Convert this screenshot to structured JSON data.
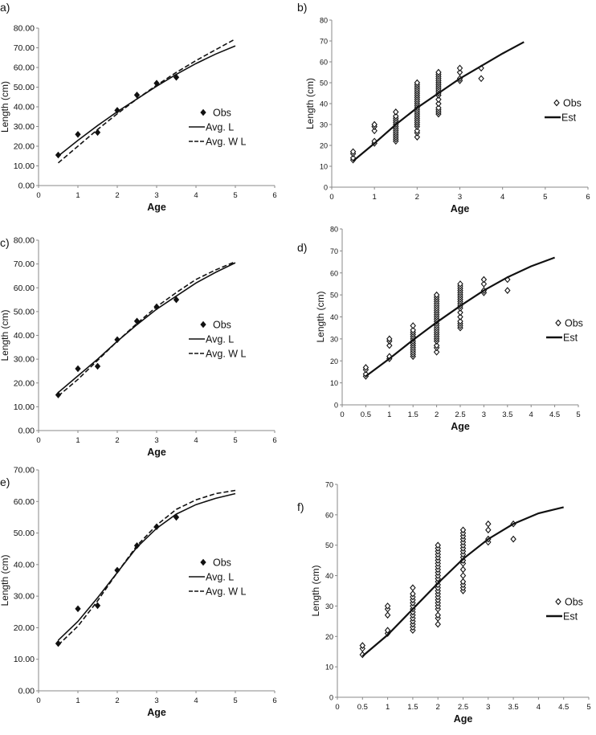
{
  "chart_data": [
    {
      "id": "a",
      "panel_label": "a)",
      "type": "line",
      "xlabel": "Age",
      "ylabel": "Length (cm)",
      "xlim": [
        0,
        6
      ],
      "ylim": [
        0,
        80
      ],
      "xstep": 1,
      "ystep": 10,
      "ydecimals": 2,
      "xdecimals": 0,
      "legend": "right",
      "obs": {
        "name": "Obs",
        "x": [
          0.5,
          1,
          1.5,
          2,
          2.5,
          3,
          3.5
        ],
        "y": [
          15.5,
          26,
          27,
          38.2,
          46,
          52,
          55
        ]
      },
      "series": [
        {
          "name": "Avg. L",
          "style": "solid",
          "x": [
            0.5,
            1,
            1.5,
            2,
            2.5,
            3,
            3.5,
            4,
            4.5,
            5
          ],
          "y": [
            15,
            23,
            30.5,
            37.5,
            44,
            50.5,
            56.5,
            62,
            66.8,
            71
          ]
        },
        {
          "name": "Avg. W L",
          "style": "dashed",
          "x": [
            0.5,
            1,
            1.5,
            2,
            2.5,
            3,
            3.5,
            4,
            4.5,
            5
          ],
          "y": [
            11.5,
            20,
            28.5,
            36.5,
            44,
            51,
            57.5,
            63.5,
            69,
            74.5
          ]
        }
      ]
    },
    {
      "id": "b",
      "panel_label": "b)",
      "type": "scatter",
      "xlabel": "Age",
      "ylabel": "Length (cm)",
      "xlim": [
        0,
        6
      ],
      "ylim": [
        0,
        80
      ],
      "xstep": 1,
      "ystep": 10,
      "ydecimals": 0,
      "xdecimals": 0,
      "legend": "right",
      "obs": {
        "name": "Obs",
        "groups": [
          [
            0.5,
            [
              13,
              14,
              16,
              17
            ]
          ],
          [
            1,
            [
              21,
              22,
              27,
              29,
              30
            ]
          ],
          [
            1.5,
            [
              22,
              23,
              24,
              25,
              26,
              27,
              28,
              29,
              30,
              31,
              32,
              33,
              34,
              36
            ]
          ],
          [
            2,
            [
              24,
              26,
              27,
              29,
              30,
              31,
              32,
              33,
              34,
              35,
              36,
              37,
              38,
              39,
              40,
              41,
              42,
              43,
              44,
              45,
              46,
              47,
              48,
              49,
              50
            ]
          ],
          [
            2.5,
            [
              35,
              36,
              37,
              38,
              40,
              42,
              44,
              45,
              46,
              47,
              48,
              49,
              50,
              51,
              52,
              53,
              54,
              55
            ]
          ],
          [
            3,
            [
              51,
              52,
              55,
              57
            ]
          ],
          [
            3.5,
            [
              52,
              57
            ]
          ]
        ]
      },
      "series": [
        {
          "name": "Est",
          "style": "solid",
          "x": [
            0.5,
            1,
            1.5,
            2,
            2.5,
            3,
            3.5,
            4,
            4.5
          ],
          "y": [
            12.5,
            21,
            30,
            38,
            45,
            52,
            58,
            64,
            69.5
          ]
        }
      ]
    },
    {
      "id": "c",
      "panel_label": "c)",
      "type": "line",
      "xlabel": "Age",
      "ylabel": "Length (cm)",
      "xlim": [
        0,
        6
      ],
      "ylim": [
        0,
        80
      ],
      "xstep": 1,
      "ystep": 10,
      "ydecimals": 2,
      "xdecimals": 0,
      "legend": "right",
      "obs": {
        "name": "Obs",
        "x": [
          0.5,
          1,
          1.5,
          2,
          2.5,
          3,
          3.5
        ],
        "y": [
          15,
          26,
          27,
          38.2,
          46,
          52,
          55
        ]
      },
      "series": [
        {
          "name": "Avg. L",
          "style": "solid",
          "x": [
            0.5,
            1,
            1.5,
            2,
            2.5,
            3,
            3.5,
            4,
            4.5,
            5
          ],
          "y": [
            16,
            23,
            30,
            37.5,
            44.5,
            51,
            56.5,
            62,
            66.5,
            70.5
          ]
        },
        {
          "name": "Avg. W L",
          "style": "dashed",
          "x": [
            0.5,
            1,
            1.5,
            2,
            2.5,
            3,
            3.5,
            4,
            4.5,
            5
          ],
          "y": [
            14.5,
            21.5,
            29.5,
            37.5,
            45,
            52,
            58,
            63.5,
            67.5,
            71
          ]
        }
      ]
    },
    {
      "id": "d",
      "panel_label": "d)",
      "type": "scatter",
      "xlabel": "Age",
      "ylabel": "Length (cm)",
      "xlim": [
        0,
        5
      ],
      "ylim": [
        0,
        80
      ],
      "xstep": 0.5,
      "ystep": 10,
      "ydecimals": 0,
      "xdecimals": -1,
      "legend": "right",
      "obs": {
        "name": "Obs",
        "groups": [
          [
            0.5,
            [
              13,
              14,
              16,
              17
            ]
          ],
          [
            1,
            [
              21,
              22,
              27,
              29,
              30
            ]
          ],
          [
            1.5,
            [
              22,
              23,
              24,
              25,
              26,
              27,
              28,
              29,
              30,
              31,
              32,
              33,
              34,
              36
            ]
          ],
          [
            2,
            [
              24,
              26,
              27,
              29,
              30,
              31,
              32,
              33,
              34,
              35,
              36,
              37,
              38,
              39,
              40,
              41,
              42,
              43,
              44,
              45,
              46,
              47,
              48,
              49,
              50
            ]
          ],
          [
            2.5,
            [
              35,
              36,
              37,
              38,
              40,
              42,
              44,
              45,
              46,
              47,
              48,
              49,
              50,
              51,
              52,
              53,
              54,
              55
            ]
          ],
          [
            3,
            [
              51,
              52,
              55,
              57
            ]
          ],
          [
            3.5,
            [
              52,
              57
            ]
          ]
        ]
      },
      "series": [
        {
          "name": "Est",
          "style": "solid",
          "x": [
            0.5,
            1,
            1.5,
            2,
            2.5,
            3,
            3.5,
            4,
            4.5
          ],
          "y": [
            13,
            21,
            29.5,
            37.5,
            45,
            52,
            58,
            63,
            67
          ]
        }
      ]
    },
    {
      "id": "e",
      "panel_label": "e)",
      "type": "line",
      "xlabel": "Age",
      "ylabel": "Length (cm)",
      "xlim": [
        0,
        6
      ],
      "ylim": [
        0,
        70
      ],
      "xstep": 1,
      "ystep": 10,
      "ydecimals": 2,
      "xdecimals": 0,
      "legend": "right",
      "obs": {
        "name": "Obs",
        "x": [
          0.5,
          1,
          1.5,
          2,
          2.5,
          3,
          3.5
        ],
        "y": [
          15,
          26,
          27,
          38.2,
          46,
          52,
          55
        ]
      },
      "series": [
        {
          "name": "Avg. L",
          "style": "solid",
          "x": [
            0.5,
            1,
            1.5,
            2,
            2.5,
            3,
            3.5,
            4,
            4.5,
            5
          ],
          "y": [
            16,
            22,
            29.5,
            37.5,
            45.5,
            51.5,
            56,
            59,
            61,
            62.5
          ]
        },
        {
          "name": "Avg. W L",
          "style": "dashed",
          "x": [
            0.5,
            1,
            1.5,
            2,
            2.5,
            3,
            3.5,
            4,
            4.5,
            5
          ],
          "y": [
            14.5,
            20.5,
            28.5,
            37.5,
            46,
            52.5,
            57.5,
            60.5,
            62.5,
            63.5
          ]
        }
      ]
    },
    {
      "id": "f",
      "panel_label": "f)",
      "type": "scatter",
      "xlabel": "Age",
      "ylabel": "Length (cm)",
      "xlim": [
        0,
        5
      ],
      "ylim": [
        0,
        70
      ],
      "xstep": 0.5,
      "ystep": 10,
      "ydecimals": 0,
      "xdecimals": -1,
      "legend": "right",
      "obs": {
        "name": "Obs",
        "groups": [
          [
            0.5,
            [
              14,
              16,
              17
            ]
          ],
          [
            1,
            [
              21,
              22,
              27,
              29,
              30
            ]
          ],
          [
            1.5,
            [
              22,
              23,
              24,
              25,
              26,
              27,
              28,
              29,
              30,
              31,
              32,
              33,
              34,
              36
            ]
          ],
          [
            2,
            [
              24,
              26,
              27,
              29,
              30,
              31,
              32,
              33,
              34,
              35,
              36,
              37,
              38,
              39,
              40,
              41,
              42,
              43,
              44,
              45,
              46,
              47,
              48,
              49,
              50
            ]
          ],
          [
            2.5,
            [
              35,
              36,
              37,
              38,
              40,
              42,
              44,
              45,
              46,
              47,
              48,
              49,
              50,
              51,
              52,
              53,
              54,
              55
            ]
          ],
          [
            3,
            [
              51,
              52,
              55,
              57
            ]
          ],
          [
            3.5,
            [
              52,
              57
            ]
          ]
        ]
      },
      "series": [
        {
          "name": "Est",
          "style": "solid",
          "x": [
            0.5,
            1,
            1.5,
            2,
            2.5,
            3,
            3.5,
            4,
            4.5
          ],
          "y": [
            13.5,
            20.5,
            29,
            37.5,
            45.5,
            52,
            57,
            60.5,
            62.5
          ]
        }
      ]
    }
  ]
}
